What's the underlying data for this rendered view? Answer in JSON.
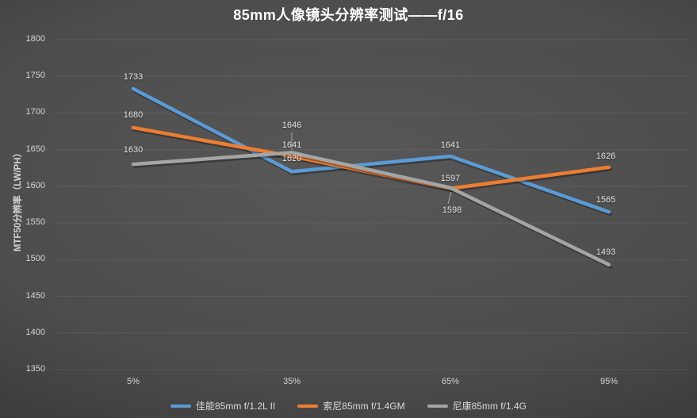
{
  "title": "85mm人像镜头分辨率测试——f/16",
  "colors": {
    "background_center": "#585858",
    "background_edge": "#2c2c2c",
    "gridline": "#6a6a6a",
    "axis_text": "#d4d4d4",
    "data_label_text": "#e4e4e4",
    "title_text": "#ffffff",
    "series_blue": "#5B9BD5",
    "series_orange": "#ED7D31",
    "series_gray": "#A5A5A5"
  },
  "chart_data": {
    "type": "line",
    "title": "85mm人像镜头分辨率测试——f/16",
    "xlabel": "",
    "ylabel": "MTF50分辨率（LW/PH）",
    "categories": [
      "5%",
      "35%",
      "65%",
      "95%"
    ],
    "ylim": [
      1350,
      1800
    ],
    "yticks": [
      1350,
      1400,
      1450,
      1500,
      1550,
      1600,
      1650,
      1700,
      1750,
      1800
    ],
    "grid": true,
    "data_labels": true,
    "legend_position": "bottom",
    "series": [
      {
        "name": "佳能85mm f/1.2L II",
        "color": "#5B9BD5",
        "values": [
          1733,
          1620,
          1641,
          1565
        ]
      },
      {
        "name": "索尼85mm f/1.4GM",
        "color": "#ED7D31",
        "values": [
          1680,
          1641,
          1597,
          1626
        ]
      },
      {
        "name": "尼康85mm f/1.4G",
        "color": "#A5A5A5",
        "values": [
          1630,
          1646,
          1598,
          1493
        ]
      }
    ],
    "label_offsets": [
      [
        [
          0,
          -15
        ],
        [
          0,
          -16
        ],
        [
          0,
          -14
        ],
        [
          -4,
          -15
        ]
      ],
      [
        [
          0,
          -16
        ],
        [
          0,
          -14
        ],
        [
          0,
          -13
        ],
        [
          -4,
          -14
        ]
      ],
      [
        [
          0,
          -18
        ],
        [
          0,
          -34
        ],
        [
          2,
          28
        ],
        [
          -4,
          -16
        ]
      ]
    ],
    "leader_lines": [
      {
        "from": [
          368,
          167
        ],
        "to": [
          368,
          189
        ]
      },
      {
        "from": [
          565,
          257
        ],
        "to": [
          569,
          242
        ]
      }
    ]
  }
}
